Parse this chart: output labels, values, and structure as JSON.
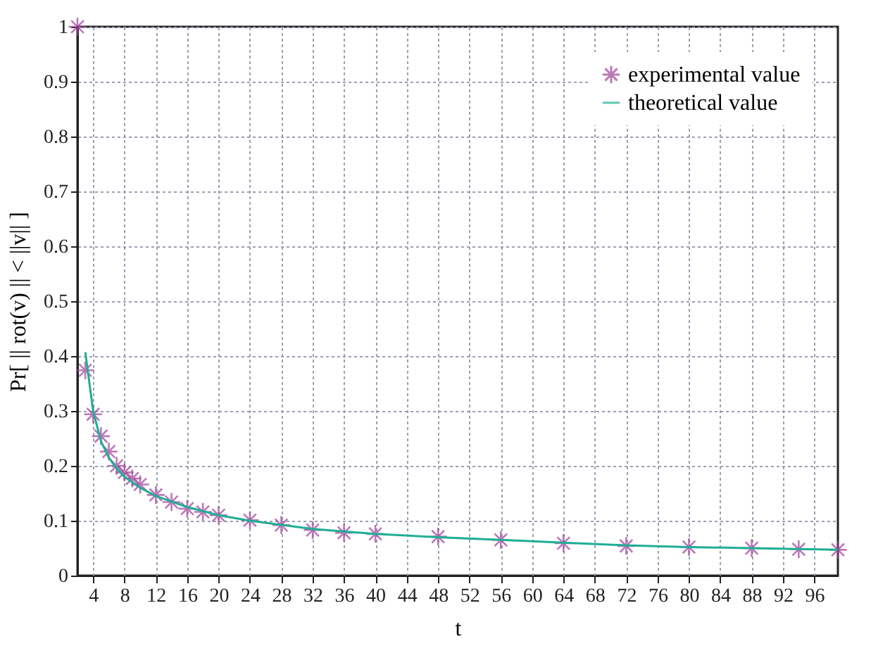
{
  "chart_data": {
    "type": "scatter",
    "xlabel": "t",
    "ylabel": "Pr[ || rot(v) || < ||v|| ]",
    "xlim": [
      2,
      99
    ],
    "xticks": [
      4,
      8,
      12,
      16,
      20,
      24,
      28,
      32,
      36,
      40,
      44,
      48,
      52,
      56,
      60,
      64,
      68,
      72,
      76,
      80,
      84,
      88,
      92,
      96
    ],
    "ylim": [
      0,
      1
    ],
    "yticks": [
      0,
      0.1,
      0.2,
      0.3,
      0.4,
      0.5,
      0.6,
      0.7,
      0.8,
      0.9,
      1
    ],
    "grid": true,
    "legend": "top right",
    "series": [
      {
        "name": "experimental value",
        "marker": "cross",
        "color": "#a0409a",
        "x": [
          2,
          3,
          4,
          5,
          6,
          7,
          8,
          9,
          10,
          12,
          14,
          16,
          18,
          20,
          24,
          28,
          32,
          36,
          40,
          48,
          56,
          64,
          72,
          80,
          88,
          94,
          99
        ],
        "values": [
          1.0,
          0.374,
          0.294,
          0.254,
          0.226,
          0.2,
          0.188,
          0.177,
          0.166,
          0.147,
          0.134,
          0.122,
          0.116,
          0.11,
          0.101,
          0.092,
          0.083,
          0.078,
          0.076,
          0.071,
          0.065,
          0.059,
          0.054,
          0.052,
          0.05,
          0.048,
          0.047
        ]
      },
      {
        "name": "theoretical value",
        "type": "line",
        "line_style": "solid",
        "color": "#1fae95",
        "x": [
          3,
          4,
          5,
          6,
          7,
          8,
          10,
          12,
          16,
          20,
          24,
          32,
          40,
          48,
          56,
          64,
          72,
          80,
          88,
          99
        ],
        "values": [
          0.407,
          0.3,
          0.245,
          0.215,
          0.195,
          0.18,
          0.16,
          0.145,
          0.125,
          0.11,
          0.1,
          0.085,
          0.076,
          0.07,
          0.065,
          0.06,
          0.055,
          0.052,
          0.05,
          0.047
        ]
      }
    ]
  }
}
